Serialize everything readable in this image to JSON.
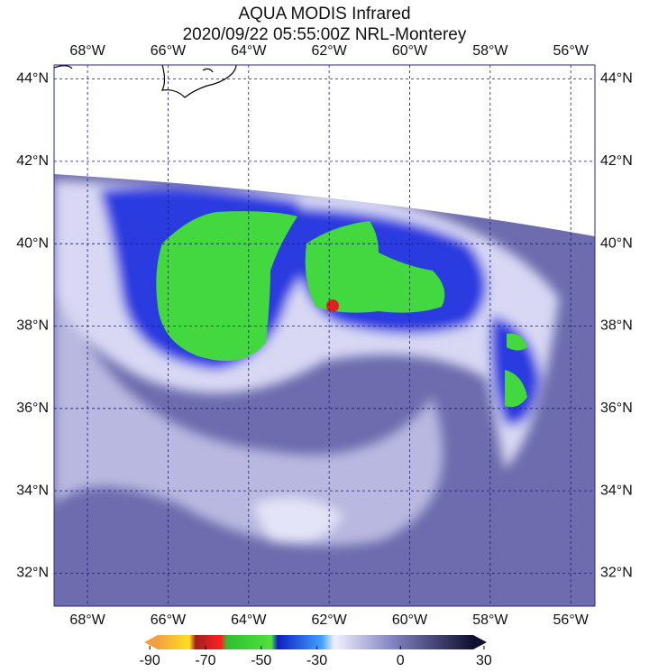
{
  "title": "AQUA MODIS Infrared",
  "subtitle": "2020/09/22 05:55:00Z NRL-Monterey",
  "lon_range": [
    -68.83,
    -55.4
  ],
  "lat_range": [
    31.2,
    44.34
  ],
  "lon_ticks": [
    {
      "value": -68,
      "label": "68°W"
    },
    {
      "value": -66,
      "label": "66°W"
    },
    {
      "value": -64,
      "label": "64°W"
    },
    {
      "value": -62,
      "label": "62°W"
    },
    {
      "value": -60,
      "label": "60°W"
    },
    {
      "value": -58,
      "label": "58°W"
    },
    {
      "value": -56,
      "label": "56°W"
    }
  ],
  "lat_ticks": [
    {
      "value": 44,
      "label": "44°N"
    },
    {
      "value": 42,
      "label": "42°N"
    },
    {
      "value": 40,
      "label": "40°N"
    },
    {
      "value": 38,
      "label": "38°N"
    },
    {
      "value": 36,
      "label": "36°N"
    },
    {
      "value": 34,
      "label": "34°N"
    },
    {
      "value": 32,
      "label": "32°N"
    }
  ],
  "colorbar": {
    "range": [
      -92,
      31
    ],
    "ticks": [
      -90,
      -70,
      -50,
      -30,
      0,
      30
    ]
  }
}
